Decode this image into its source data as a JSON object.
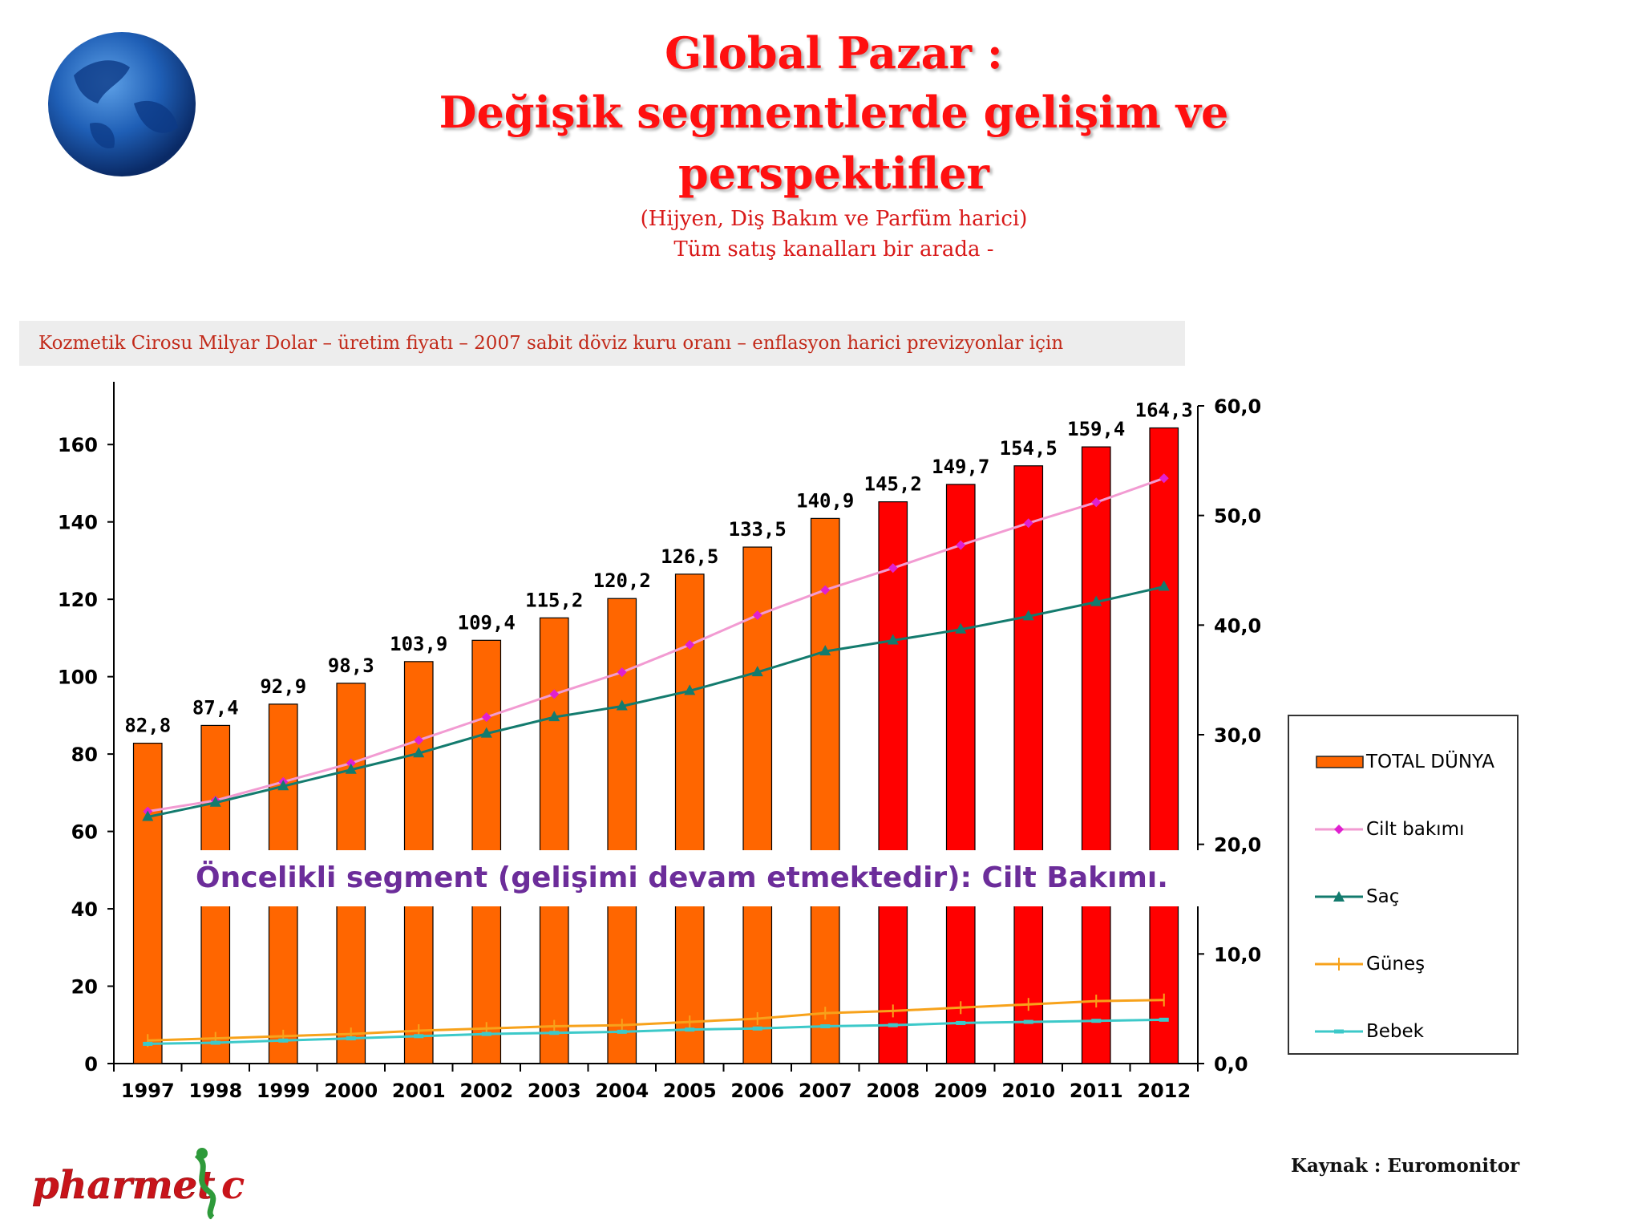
{
  "header": {
    "title_line1": "Global Pazar :",
    "title_line2": "Değişik segmentlerde gelişim ve perspektifler",
    "subtitle_line1": "(Hijyen, Diş Bakım ve Parfüm harici)",
    "subtitle_line2": "Tüm satış kanalları bir arada  -"
  },
  "info_bar": {
    "text": "Kozmetik Cirosu Milyar Dolar – üretim fiyatı – 2007 sabit döviz kuru oranı – enflasyon harici previzyonlar için"
  },
  "highlight_text": "Öncelikli segment (gelişimi devam etmektedir): Cilt Bakımı.",
  "source_text": "Kaynak : Euromonitor",
  "logo_text": "pharmet c",
  "colors": {
    "bar_historical": "#ff6600",
    "bar_forecast": "#ff0000",
    "cilt": "#f29bd2",
    "cilt_marker": "#e020d0",
    "sac": "#137b6e",
    "gunes": "#f7a21b",
    "bebek": "#3cc9c9"
  },
  "chart_data": {
    "type": "bar",
    "categories": [
      "1997",
      "1998",
      "1999",
      "2000",
      "2001",
      "2002",
      "2003",
      "2004",
      "2005",
      "2006",
      "2007",
      "2008",
      "2009",
      "2010",
      "2011",
      "2012"
    ],
    "forecast_from": "2008",
    "left_axis": {
      "ylim": [
        0,
        170
      ],
      "ticks": [
        0,
        20,
        40,
        60,
        80,
        100,
        120,
        140,
        160
      ],
      "tick_labels": [
        "0",
        "20",
        "40",
        "60",
        "80",
        "100",
        "120",
        "140",
        "160"
      ]
    },
    "right_axis": {
      "ylim": [
        0,
        60
      ],
      "ticks": [
        0,
        10,
        20,
        30,
        40,
        50,
        60
      ],
      "tick_labels": [
        "0,0",
        "10,0",
        "20,0",
        "30,0",
        "40,0",
        "50,0",
        "60,0"
      ]
    },
    "bars": {
      "name": "TOTAL DÜNYA",
      "values": [
        82.8,
        87.4,
        92.9,
        98.3,
        103.9,
        109.4,
        115.2,
        120.2,
        126.5,
        133.5,
        140.9,
        145.2,
        149.7,
        154.5,
        159.4,
        164.3
      ],
      "labels": [
        "82,8",
        "87,4",
        "92,9",
        "98,3",
        "103,9",
        "109,4",
        "115,2",
        "120,2",
        "126,5",
        "133,5",
        "140,9",
        "145,2",
        "149,7",
        "154,5",
        "159,4",
        "164,3"
      ]
    },
    "series": [
      {
        "name": "Cilt bakımı",
        "axis": "right",
        "marker": "diamond",
        "values": [
          23.0,
          24.0,
          25.7,
          27.4,
          29.5,
          31.6,
          33.7,
          35.7,
          38.2,
          40.9,
          43.2,
          45.2,
          47.3,
          49.3,
          51.2,
          53.4
        ]
      },
      {
        "name": "Saç",
        "axis": "right",
        "marker": "triangle",
        "values": [
          22.5,
          23.8,
          25.3,
          26.8,
          28.3,
          30.1,
          31.6,
          32.6,
          34.0,
          35.7,
          37.6,
          38.6,
          39.6,
          40.8,
          42.1,
          43.5
        ]
      },
      {
        "name": "Güneş",
        "axis": "right",
        "marker": "cross",
        "values": [
          2.1,
          2.3,
          2.5,
          2.7,
          3.0,
          3.2,
          3.4,
          3.5,
          3.8,
          4.1,
          4.6,
          4.8,
          5.1,
          5.4,
          5.7,
          5.8
        ]
      },
      {
        "name": "Bebek",
        "axis": "right",
        "marker": "dash",
        "values": [
          1.8,
          1.9,
          2.1,
          2.3,
          2.5,
          2.7,
          2.8,
          2.9,
          3.1,
          3.2,
          3.4,
          3.5,
          3.7,
          3.8,
          3.9,
          4.0
        ]
      }
    ],
    "legend": [
      "TOTAL DÜNYA",
      "Cilt bakımı",
      "Saç",
      "Güneş",
      "Bebek"
    ],
    "legend_position": "right"
  }
}
